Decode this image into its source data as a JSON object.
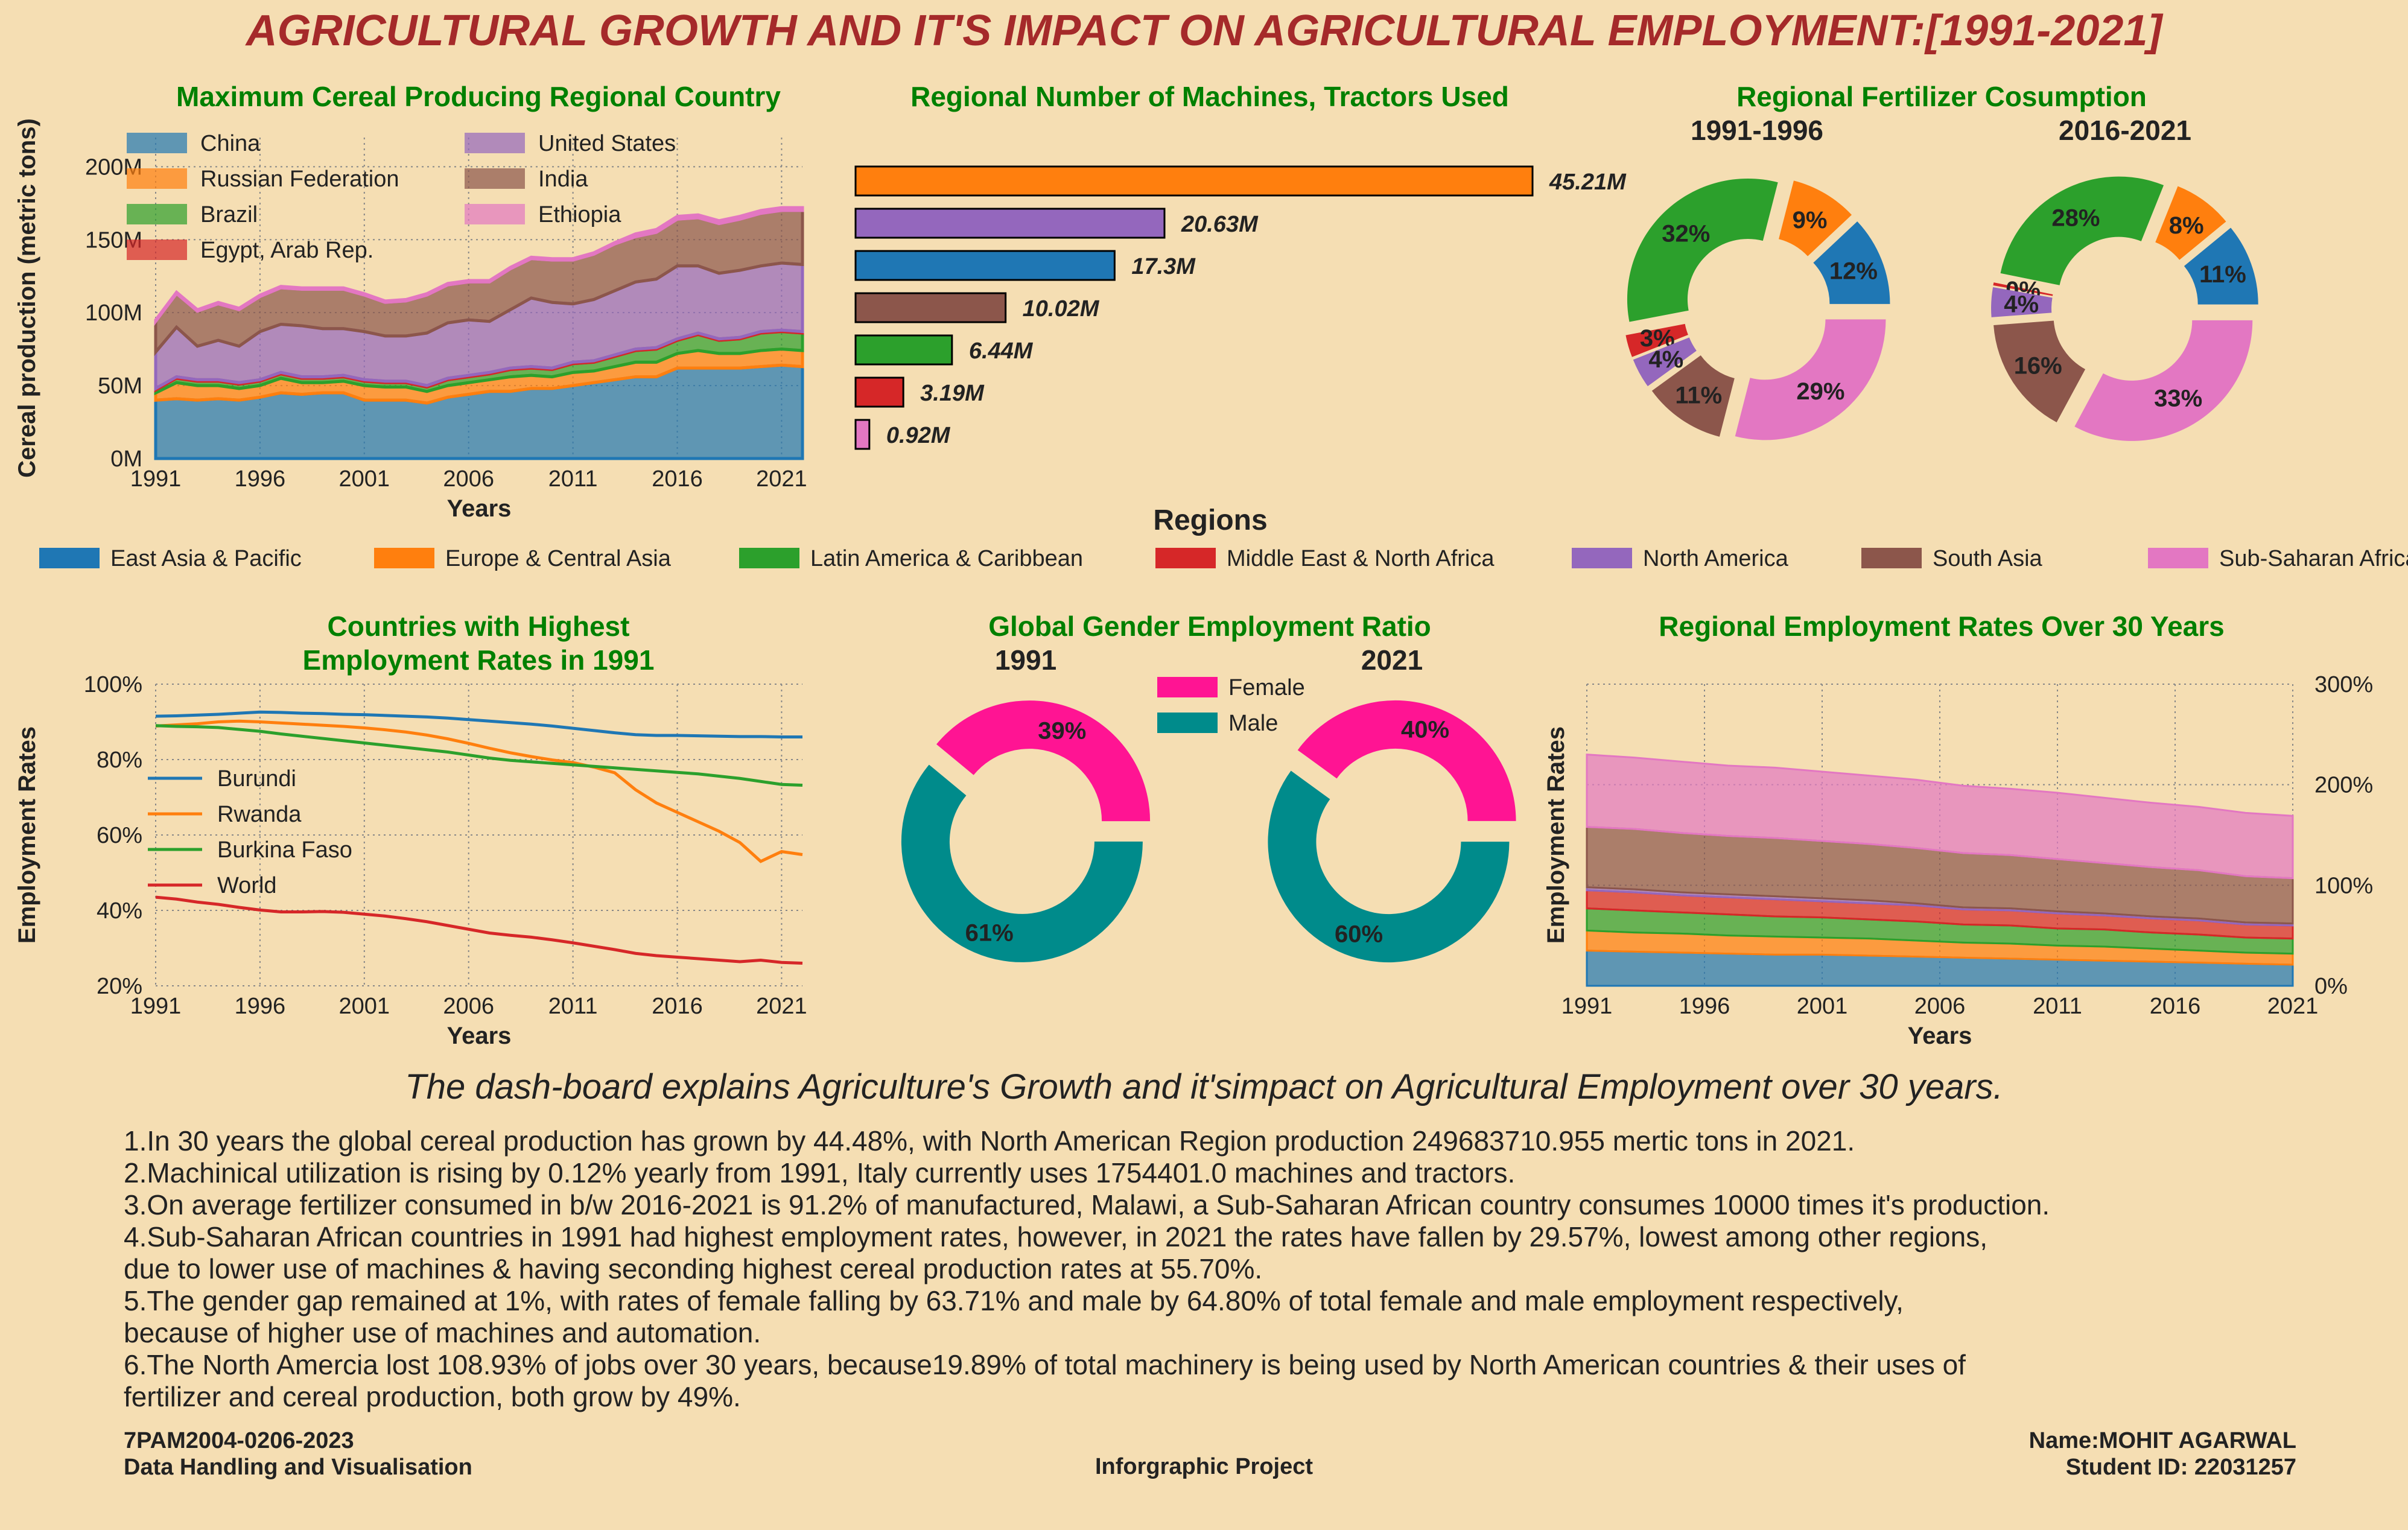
{
  "main_title": "AGRICULTURAL GROWTH AND IT'S IMPACT ON AGRICULTURAL EMPLOYMENT:[1991-2021]",
  "dashboard_subtitle": "The dash-board explains Agriculture's Growth and it'simpact on Agricultural Employment over 30 years.",
  "colors": {
    "background": "#f5deb3",
    "chart_title": "#008000",
    "main_title": "#a52a2a",
    "east_asia": "#1f77b4",
    "europe": "#ff7f0e",
    "latam": "#2ca02c",
    "mena": "#d62728",
    "north_america": "#9467bd",
    "south_asia": "#8c564b",
    "ssa": "#e377c2",
    "female": "#ff1493",
    "male": "#008b8b"
  },
  "regions_legend": {
    "title": "Regions",
    "items": [
      {
        "label": "East Asia & Pacific",
        "color": "#1f77b4"
      },
      {
        "label": "Europe & Central Asia",
        "color": "#ff7f0e"
      },
      {
        "label": "Latin America & Caribbean",
        "color": "#2ca02c"
      },
      {
        "label": "Middle East & North Africa",
        "color": "#d62728"
      },
      {
        "label": "North America",
        "color": "#9467bd"
      },
      {
        "label": "South Asia",
        "color": "#8c564b"
      },
      {
        "label": "Sub-Saharan Africa",
        "color": "#e377c2"
      }
    ]
  },
  "findings": [
    "1.In 30 years the global cereal production has grown by 44.48%, with North American Region production 249683710.955 mertic tons in 2021.",
    "2.Machinical utilization is rising by 0.12% yearly from 1991, Italy currently uses 1754401.0 machines and tractors.",
    "3.On average fertilizer consumed in b/w 2016-2021 is 91.2% of manufactured, Malawi, a Sub-Saharan African country consumes 10000 times it's production.",
    "4.Sub-Saharan African countries in 1991 had highest employment rates, however, in 2021 the rates have fallen by 29.57%, lowest among other regions,",
    "due to lower use of machines & having seconding highest cereal production rates at 55.70%.",
    "5.The gender gap remained at 1%, with rates of female falling by 63.71% and male by 64.80% of total female and male employment respectively,",
    "because of higher use of machines and automation.",
    "6.The North Amercia lost 108.93% of jobs over 30 years, because19.89% of total machinery is being used by North American countries & their uses of",
    "fertilizer and cereal production, both grow by 49%."
  ],
  "footer": {
    "course_code": "7PAM2004-0206-2023",
    "course_name": "Data Handling and Visualisation",
    "project": "Inforgraphic Project",
    "name": "Name:MOHIT AGARWAL",
    "student_id": "Student ID: 22031257"
  },
  "chart_data": [
    {
      "id": "cereal",
      "type": "area",
      "stacked": true,
      "title": "Maximum Cereal Producing Regional Country",
      "xlabel": "Years",
      "ylabel": "Cereal production (metric tons)",
      "ylim": [
        0,
        220
      ],
      "yunit": "M",
      "yticks": [
        "0M",
        "50M",
        "100M",
        "150M",
        "200M"
      ],
      "xticks": [
        "1991",
        "1996",
        "2001",
        "2006",
        "2011",
        "2016",
        "2021"
      ],
      "grid": true,
      "legend_position": "top-left",
      "x": [
        1991,
        1992,
        1993,
        1994,
        1995,
        1996,
        1997,
        1998,
        1999,
        2000,
        2001,
        2002,
        2003,
        2004,
        2005,
        2006,
        2007,
        2008,
        2009,
        2010,
        2011,
        2012,
        2013,
        2014,
        2015,
        2016,
        2017,
        2018,
        2019,
        2020,
        2021,
        2022
      ],
      "series": [
        {
          "name": "China",
          "color": "#1f77b4",
          "values": [
            40,
            41,
            40,
            41,
            40,
            42,
            45,
            44,
            45,
            45,
            40,
            40,
            40,
            38,
            42,
            44,
            46,
            46,
            48,
            48,
            50,
            52,
            54,
            56,
            56,
            62,
            62,
            62,
            62,
            63,
            64,
            63
          ]
        },
        {
          "name": "Russian Federation",
          "color": "#ff7f0e",
          "values": [
            5,
            11,
            10,
            9,
            8,
            8,
            10,
            8,
            7,
            8,
            10,
            9,
            9,
            8,
            8,
            8,
            8,
            10,
            9,
            8,
            9,
            8,
            9,
            10,
            10,
            10,
            12,
            10,
            10,
            11,
            11,
            11
          ]
        },
        {
          "name": "Brazil",
          "color": "#2ca02c",
          "values": [
            2,
            3,
            3,
            3,
            3,
            3,
            3,
            3,
            3,
            3,
            3,
            3,
            3,
            3,
            4,
            4,
            4,
            5,
            5,
            5,
            6,
            6,
            7,
            8,
            9,
            9,
            11,
            9,
            10,
            12,
            12,
            12
          ]
        },
        {
          "name": "Egypt, Arab Rep.",
          "color": "#d62728",
          "values": [
            1,
            1,
            1,
            1,
            1,
            1,
            1,
            1,
            1,
            1,
            1,
            1,
            1,
            1,
            1,
            1,
            1,
            1,
            1,
            1,
            1,
            1,
            1,
            1,
            1,
            1,
            1,
            1,
            1,
            1,
            1,
            1
          ]
        },
        {
          "name": "United States",
          "color": "#9467bd",
          "values": [
            25,
            34,
            23,
            27,
            25,
            33,
            33,
            35,
            33,
            32,
            33,
            31,
            31,
            36,
            38,
            38,
            35,
            40,
            47,
            45,
            40,
            42,
            44,
            46,
            47,
            50,
            46,
            45,
            46,
            45,
            46,
            46
          ]
        },
        {
          "name": "India",
          "color": "#8c564b",
          "values": [
            21,
            23,
            24,
            25,
            25,
            24,
            25,
            25,
            27,
            27,
            25,
            23,
            24,
            26,
            26,
            26,
            27,
            28,
            27,
            29,
            30,
            31,
            32,
            31,
            32,
            32,
            33,
            34,
            35,
            36,
            36,
            37
          ]
        },
        {
          "name": "Ethiopia",
          "color": "#e377c2",
          "values": [
            1,
            1,
            1,
            1,
            1,
            1,
            1,
            1,
            1,
            1,
            1,
            1,
            1,
            1,
            1,
            1,
            1,
            1,
            1,
            1,
            1,
            1,
            1,
            2,
            2,
            2,
            2,
            2,
            2,
            2,
            2,
            2
          ]
        }
      ]
    },
    {
      "id": "machines",
      "type": "bar",
      "orientation": "horizontal",
      "title": "Regional Number of Machines, Tractors Used",
      "categories": [
        "Europe & Central Asia",
        "North America",
        "East Asia & Pacific",
        "South Asia",
        "Latin America & Caribbean",
        "Middle East & North Africa",
        "Sub-Saharan Africa"
      ],
      "values": [
        45.21,
        20.63,
        17.3,
        10.02,
        6.44,
        3.19,
        0.92
      ],
      "labels": [
        "45.21M",
        "20.63M",
        "17.3M",
        "10.02M",
        "6.44M",
        "3.19M",
        "0.92M"
      ],
      "colors": [
        "#ff7f0e",
        "#9467bd",
        "#1f77b4",
        "#8c564b",
        "#2ca02c",
        "#d62728",
        "#e377c2"
      ],
      "xlim": [
        0,
        45.21
      ]
    },
    {
      "id": "fertilizer",
      "type": "pie",
      "donut": true,
      "title": "Regional Fertilizer Cosumption",
      "pies": [
        {
          "subtitle": "1991-1996",
          "slices": [
            {
              "region": "East Asia & Pacific",
              "value": 12,
              "label": "12%",
              "color": "#1f77b4"
            },
            {
              "region": "Europe & Central Asia",
              "value": 9,
              "label": "9%",
              "color": "#ff7f0e"
            },
            {
              "region": "Latin America & Caribbean",
              "value": 32,
              "label": "32%",
              "color": "#2ca02c"
            },
            {
              "region": "Middle East & North Africa",
              "value": 3,
              "label": "3%",
              "color": "#d62728"
            },
            {
              "region": "North America",
              "value": 4,
              "label": "4%",
              "color": "#9467bd"
            },
            {
              "region": "South Asia",
              "value": 11,
              "label": "11%",
              "color": "#8c564b"
            },
            {
              "region": "Sub-Saharan Africa",
              "value": 29,
              "label": "29%",
              "color": "#e377c2"
            }
          ]
        },
        {
          "subtitle": "2016-2021",
          "slices": [
            {
              "region": "East Asia & Pacific",
              "value": 11,
              "label": "11%",
              "color": "#1f77b4"
            },
            {
              "region": "Europe & Central Asia",
              "value": 8,
              "label": "8%",
              "color": "#ff7f0e"
            },
            {
              "region": "Latin America & Caribbean",
              "value": 28,
              "label": "28%",
              "color": "#2ca02c"
            },
            {
              "region": "Middle East & North Africa",
              "value": 0.4,
              "label": "0%",
              "color": "#d62728"
            },
            {
              "region": "North America",
              "value": 4,
              "label": "4%",
              "color": "#9467bd"
            },
            {
              "region": "South Asia",
              "value": 16,
              "label": "16%",
              "color": "#8c564b"
            },
            {
              "region": "Sub-Saharan Africa",
              "value": 33,
              "label": "33%",
              "color": "#e377c2"
            }
          ]
        }
      ]
    },
    {
      "id": "employment_countries",
      "type": "line",
      "title": "Countries with Highest Employment Rates in 1991",
      "title_lines": [
        "Countries with Highest",
        "Employment Rates in 1991"
      ],
      "xlabel": "Years",
      "ylabel": "Employment Rates",
      "ylim": [
        20,
        100
      ],
      "yticks": [
        "20%",
        "40%",
        "60%",
        "80%",
        "100%"
      ],
      "xticks": [
        "1991",
        "1996",
        "2001",
        "2006",
        "2011",
        "2016",
        "2021"
      ],
      "grid": true,
      "legend_position": "center-left",
      "x": [
        1991,
        1992,
        1993,
        1994,
        1995,
        1996,
        1997,
        1998,
        1999,
        2000,
        2001,
        2002,
        2003,
        2004,
        2005,
        2006,
        2007,
        2008,
        2009,
        2010,
        2011,
        2012,
        2013,
        2014,
        2015,
        2016,
        2017,
        2018,
        2019,
        2020,
        2021,
        2022
      ],
      "series": [
        {
          "name": "Burundi",
          "color": "#1f77b4",
          "values": [
            91.5,
            91.6,
            91.8,
            92.0,
            92.3,
            92.6,
            92.5,
            92.3,
            92.2,
            92.0,
            91.9,
            91.7,
            91.5,
            91.3,
            91.0,
            90.6,
            90.2,
            89.8,
            89.4,
            88.9,
            88.3,
            87.7,
            87.1,
            86.6,
            86.4,
            86.4,
            86.3,
            86.2,
            86.1,
            86.1,
            86.0,
            86.0
          ]
        },
        {
          "name": "Rwanda",
          "color": "#ff7f0e",
          "values": [
            88.9,
            89.2,
            89.5,
            90.0,
            90.2,
            90.0,
            89.7,
            89.4,
            89.1,
            88.8,
            88.4,
            87.9,
            87.3,
            86.5,
            85.5,
            84.3,
            83.0,
            81.8,
            80.8,
            79.9,
            79.2,
            78.0,
            76.5,
            72.0,
            68.5,
            66.0,
            63.5,
            61.0,
            58.0,
            53.0,
            55.6,
            54.8
          ]
        },
        {
          "name": "Burkina Faso",
          "color": "#2ca02c",
          "values": [
            89.0,
            88.8,
            88.7,
            88.5,
            88.0,
            87.5,
            86.8,
            86.2,
            85.6,
            85.0,
            84.4,
            83.8,
            83.2,
            82.6,
            82.0,
            81.2,
            80.4,
            79.8,
            79.4,
            79.0,
            78.6,
            78.2,
            77.8,
            77.4,
            77.0,
            76.6,
            76.2,
            75.6,
            75.0,
            74.2,
            73.4,
            73.2
          ]
        },
        {
          "name": "World",
          "color": "#d62728",
          "values": [
            43.5,
            43.0,
            42.2,
            41.6,
            40.8,
            40.1,
            39.6,
            39.6,
            39.7,
            39.5,
            39.0,
            38.5,
            37.8,
            37.0,
            36.0,
            35.0,
            34.0,
            33.4,
            32.9,
            32.2,
            31.4,
            30.5,
            29.6,
            28.6,
            28.0,
            27.6,
            27.2,
            26.8,
            26.4,
            26.8,
            26.2,
            26.0
          ]
        }
      ]
    },
    {
      "id": "gender",
      "type": "pie",
      "donut": true,
      "title": "Global Gender Employment Ratio",
      "legend": [
        {
          "label": "Female",
          "color": "#ff1493"
        },
        {
          "label": "Male",
          "color": "#008b8b"
        }
      ],
      "pies": [
        {
          "subtitle": "1991",
          "slices": [
            {
              "name": "Female",
              "value": 39,
              "label": "39%",
              "color": "#ff1493"
            },
            {
              "name": "Male",
              "value": 61,
              "label": "61%",
              "color": "#008b8b"
            }
          ]
        },
        {
          "subtitle": "2021",
          "slices": [
            {
              "name": "Female",
              "value": 40,
              "label": "40%",
              "color": "#ff1493"
            },
            {
              "name": "Male",
              "value": 60,
              "label": "60%",
              "color": "#008b8b"
            }
          ]
        }
      ]
    },
    {
      "id": "regional_employment",
      "type": "area",
      "stacked": true,
      "title": "Regional Employment Rates Over 30 Years",
      "xlabel": "Years",
      "ylabel": "Employment Rates",
      "ylim": [
        0,
        300
      ],
      "yticks": [
        "0%",
        "100%",
        "200%",
        "300%"
      ],
      "yaxis_side": "right",
      "xticks": [
        "1991",
        "1996",
        "2001",
        "2006",
        "2011",
        "2016",
        "2021"
      ],
      "grid": true,
      "x": [
        1991,
        1993,
        1995,
        1997,
        1999,
        2001,
        2003,
        2005,
        2007,
        2009,
        2011,
        2013,
        2015,
        2017,
        2019,
        2021
      ],
      "series": [
        {
          "name": "East Asia & Pacific",
          "color": "#1f77b4",
          "values": [
            35,
            34,
            33,
            32,
            31,
            31,
            30,
            29,
            28,
            27,
            26,
            25,
            24,
            23,
            22,
            21
          ]
        },
        {
          "name": "Europe & Central Asia",
          "color": "#ff7f0e",
          "values": [
            20,
            19,
            19,
            18,
            18,
            17,
            17,
            16,
            15,
            15,
            14,
            14,
            13,
            12,
            11,
            11
          ]
        },
        {
          "name": "Latin America & Caribbean",
          "color": "#2ca02c",
          "values": [
            22,
            22,
            21,
            21,
            20,
            20,
            19,
            19,
            18,
            18,
            17,
            17,
            16,
            16,
            15,
            15
          ]
        },
        {
          "name": "Middle East & North Africa",
          "color": "#d62728",
          "values": [
            18,
            18,
            17,
            17,
            17,
            16,
            16,
            16,
            15,
            15,
            15,
            14,
            14,
            14,
            13,
            13
          ]
        },
        {
          "name": "North America",
          "color": "#9467bd",
          "values": [
            3,
            3,
            3,
            3,
            3,
            3,
            3,
            2,
            2,
            2,
            2,
            2,
            2,
            2,
            2,
            2
          ]
        },
        {
          "name": "South Asia",
          "color": "#8c564b",
          "values": [
            60,
            60,
            59,
            58,
            58,
            57,
            56,
            55,
            54,
            53,
            52,
            50,
            49,
            48,
            46,
            45
          ]
        },
        {
          "name": "Sub-Saharan Africa",
          "color": "#e377c2",
          "values": [
            72,
            71,
            71,
            70,
            70,
            69,
            68,
            68,
            67,
            66,
            66,
            65,
            64,
            63,
            63,
            62
          ]
        }
      ]
    }
  ]
}
